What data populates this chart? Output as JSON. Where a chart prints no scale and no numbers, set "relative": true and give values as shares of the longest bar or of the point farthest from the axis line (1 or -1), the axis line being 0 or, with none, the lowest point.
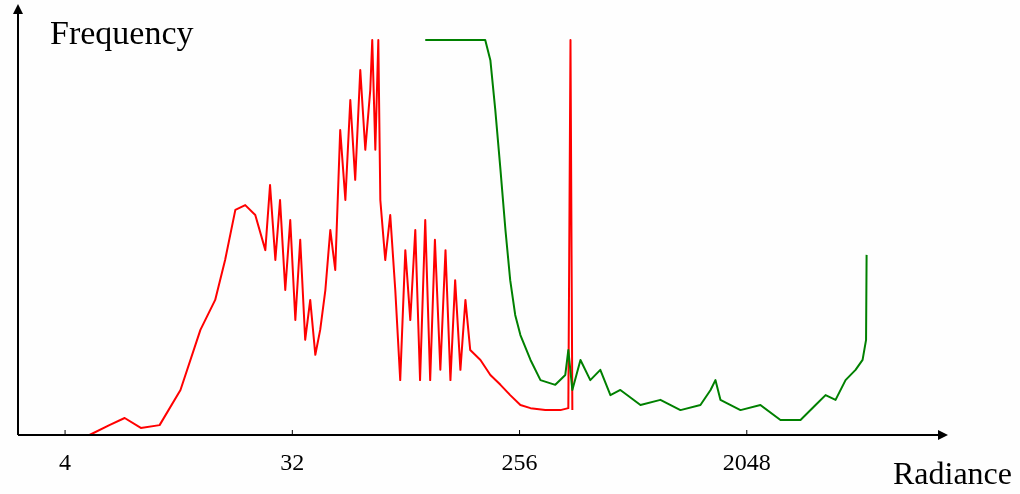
{
  "chart_data": {
    "type": "line",
    "xlabel": "Radiance",
    "ylabel": "Frequency",
    "relative": true,
    "log": "x",
    "xlim": [
      2.6,
      12000
    ],
    "xticks": [
      4,
      32,
      256,
      2048
    ],
    "series": [
      {
        "color": "#ff0000",
        "x": [
          2.65,
          5.0,
          6.0,
          6.9,
          8.0,
          9.5,
          11.5,
          13.8,
          15.8,
          17.3,
          19.0,
          20.8,
          22.8,
          25.0,
          26.1,
          27.4,
          28.6,
          30.0,
          31.4,
          32.9,
          34.4,
          36.0,
          37.7,
          39.5,
          41.3,
          43.3,
          45.3,
          47.4,
          49.6,
          52.0,
          54.4,
          56.9,
          59.6,
          62.4,
          65.3,
          66.5,
          68.4,
          70.3,
          71.6,
          74.9,
          78.4,
          82.1,
          85.9,
          90.0,
          94.2,
          98.6,
          103,
          108,
          113,
          118,
          124,
          130,
          136,
          142,
          149,
          156,
          163,
          179,
          196,
          215,
          235,
          258,
          283,
          324,
          372,
          400,
          408,
          415
        ],
        "values": [
          0,
          0,
          0.025,
          0.043,
          0.018,
          0.025,
          0.114,
          0.266,
          0.342,
          0.443,
          0.57,
          0.582,
          0.557,
          0.468,
          0.633,
          0.443,
          0.595,
          0.367,
          0.544,
          0.291,
          0.494,
          0.241,
          0.342,
          0.203,
          0.266,
          0.367,
          0.519,
          0.418,
          0.772,
          0.595,
          0.848,
          0.646,
          0.924,
          0.722,
          0.873,
          1,
          0.722,
          1,
          0.595,
          0.443,
          0.557,
          0.367,
          0.139,
          0.468,
          0.291,
          0.519,
          0.139,
          0.544,
          0.139,
          0.494,
          0.165,
          0.468,
          0.139,
          0.392,
          0.165,
          0.342,
          0.215,
          0.19,
          0.152,
          0.127,
          0.101,
          0.076,
          0.068,
          0.063,
          0.063,
          0.068,
          1,
          0.063
        ]
      },
      {
        "color": "#008000",
        "x": [
          108,
          187,
          196,
          205,
          215,
          225,
          235,
          246,
          258,
          283,
          310,
          355,
          389,
          400,
          415,
          447,
          489,
          536,
          588,
          644,
          774,
          929,
          1116,
          1340,
          1470,
          1537,
          1609,
          1933,
          2320,
          2787,
          3348,
          3843,
          4211,
          4614,
          5056,
          5540,
          5909,
          6100,
          6130
        ],
        "values": [
          1,
          1,
          0.949,
          0.823,
          0.671,
          0.519,
          0.392,
          0.304,
          0.253,
          0.19,
          0.139,
          0.127,
          0.152,
          0.215,
          0.114,
          0.19,
          0.139,
          0.165,
          0.101,
          0.114,
          0.076,
          0.089,
          0.063,
          0.076,
          0.114,
          0.139,
          0.089,
          0.063,
          0.076,
          0.038,
          0.038,
          0.076,
          0.101,
          0.089,
          0.139,
          0.165,
          0.19,
          0.241,
          0.456
        ]
      }
    ]
  }
}
